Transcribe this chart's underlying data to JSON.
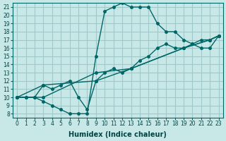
{
  "xlabel": "Humidex (Indice chaleur)",
  "bg_color": "#c8e8e8",
  "line_color": "#006666",
  "grid_color": "#a0c8c8",
  "xlim": [
    -0.5,
    23.5
  ],
  "ylim": [
    7.5,
    21.5
  ],
  "xticks": [
    0,
    1,
    2,
    3,
    4,
    5,
    6,
    7,
    8,
    9,
    10,
    11,
    12,
    13,
    14,
    15,
    16,
    17,
    18,
    19,
    20,
    21,
    22,
    23
  ],
  "yticks": [
    8,
    9,
    10,
    11,
    12,
    13,
    14,
    15,
    16,
    17,
    18,
    19,
    20,
    21
  ],
  "line1_x": [
    0,
    1,
    2,
    3,
    4,
    5,
    6,
    7,
    8,
    9,
    10,
    11,
    12,
    13,
    14,
    15,
    16,
    17,
    18,
    19,
    20,
    21,
    22,
    23
  ],
  "line1_y": [
    10,
    10,
    10,
    9.5,
    9,
    8.5,
    8,
    8,
    8,
    15,
    20.5,
    21,
    21.5,
    21,
    21,
    21,
    19,
    18,
    18,
    17,
    16.5,
    16,
    16,
    17.5
  ],
  "line2_x": [
    0,
    1,
    2,
    3,
    4,
    5,
    6,
    7,
    8,
    9,
    10,
    11,
    12,
    13,
    14,
    15,
    16,
    17,
    18,
    19,
    20,
    21,
    22,
    23
  ],
  "line2_y": [
    10,
    10,
    10,
    11.5,
    11,
    11.5,
    12,
    10,
    8.5,
    12,
    13,
    13.5,
    13,
    13.5,
    14.5,
    15,
    16,
    16.5,
    16,
    16,
    16.5,
    17,
    17,
    17.5
  ],
  "line3_x": [
    0,
    3,
    9,
    13,
    19,
    22,
    23
  ],
  "line3_y": [
    10,
    10,
    13,
    13.5,
    16,
    17,
    17.5
  ],
  "line4_x": [
    0,
    3,
    9,
    13,
    19,
    22,
    23
  ],
  "line4_y": [
    10,
    11.5,
    12,
    13.5,
    16,
    17,
    17.5
  ]
}
